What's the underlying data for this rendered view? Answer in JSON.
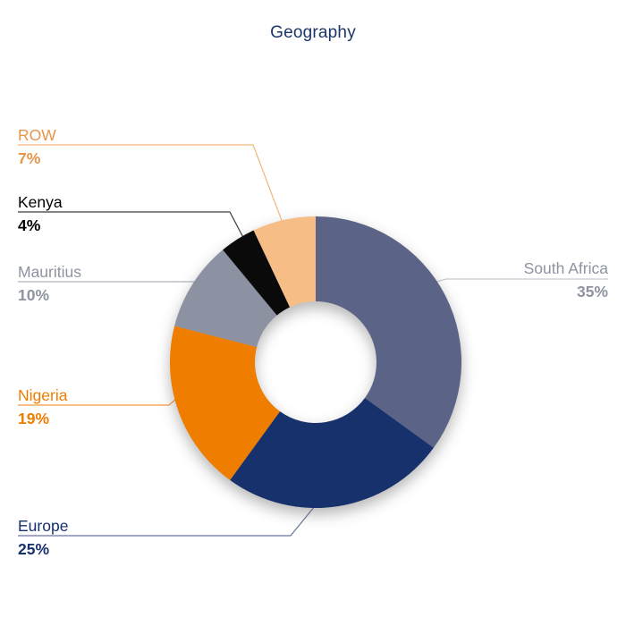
{
  "title": "Geography",
  "title_color": "#1c3667",
  "background_color": "#ffffff",
  "chart_data": {
    "type": "pie",
    "subtype": "donut",
    "title": "Geography",
    "start_angle_deg": 0,
    "direction": "clockwise",
    "inner_radius_ratio": 0.42,
    "legend_position": "callout-labels",
    "slices": [
      {
        "label": "South Africa",
        "value": 35,
        "pct_label": "35%",
        "color": "#5b6386",
        "label_color": "#8e93a1",
        "line_color": "#c9ccd4"
      },
      {
        "label": "Europe",
        "value": 25,
        "pct_label": "25%",
        "color": "#17316c",
        "label_color": "#17316c",
        "line_color": "#6a75a0"
      },
      {
        "label": "Nigeria",
        "value": 19,
        "pct_label": "19%",
        "color": "#ee7d00",
        "label_color": "#ee7d00",
        "line_color": "#f29b42"
      },
      {
        "label": "Mauritius",
        "value": 10,
        "pct_label": "10%",
        "color": "#8c92a1",
        "label_color": "#8e93a1",
        "line_color": "#aeb2bd"
      },
      {
        "label": "Kenya",
        "value": 4,
        "pct_label": "4%",
        "color": "#0a0a0a",
        "label_color": "#000000",
        "line_color": "#3c3c3c"
      },
      {
        "label": "ROW",
        "value": 7,
        "pct_label": "7%",
        "color": "#f6bd87",
        "label_color": "#e8954a",
        "line_color": "#f3b67b"
      }
    ]
  }
}
